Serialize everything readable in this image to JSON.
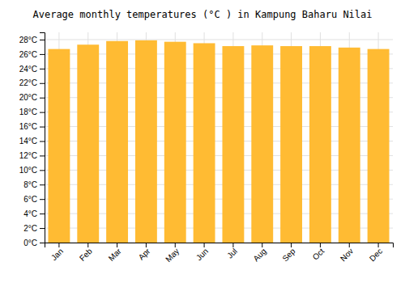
{
  "chart_data": {
    "type": "bar",
    "title": "Average monthly temperatures (°C ) in Kampung Baharu Nilai",
    "categories": [
      "Jan",
      "Feb",
      "Mar",
      "Apr",
      "May",
      "Jun",
      "Jul",
      "Aug",
      "Sep",
      "Oct",
      "Nov",
      "Dec"
    ],
    "values": [
      26.7,
      27.3,
      27.8,
      27.9,
      27.7,
      27.5,
      27.1,
      27.2,
      27.1,
      27.1,
      26.9,
      26.7
    ],
    "color": "#FFBB33",
    "ylim": [
      0,
      29
    ],
    "yticks": [
      {
        "value": 0,
        "label": "0°C"
      },
      {
        "value": 2,
        "label": "2°C"
      },
      {
        "value": 4,
        "label": "4°C"
      },
      {
        "value": 6,
        "label": "6°C"
      },
      {
        "value": 8,
        "label": "8°C"
      },
      {
        "value": 10,
        "label": "10°C"
      },
      {
        "value": 12,
        "label": "12°C"
      },
      {
        "value": 14,
        "label": "14°C"
      },
      {
        "value": 16,
        "label": "16°C"
      },
      {
        "value": 18,
        "label": "18°C"
      },
      {
        "value": 20,
        "label": "20°C"
      },
      {
        "value": 22,
        "label": "22°C"
      },
      {
        "value": 24,
        "label": "24°C"
      },
      {
        "value": 26,
        "label": "26°C"
      },
      {
        "value": 28,
        "label": "28°C"
      }
    ],
    "grid": true
  }
}
